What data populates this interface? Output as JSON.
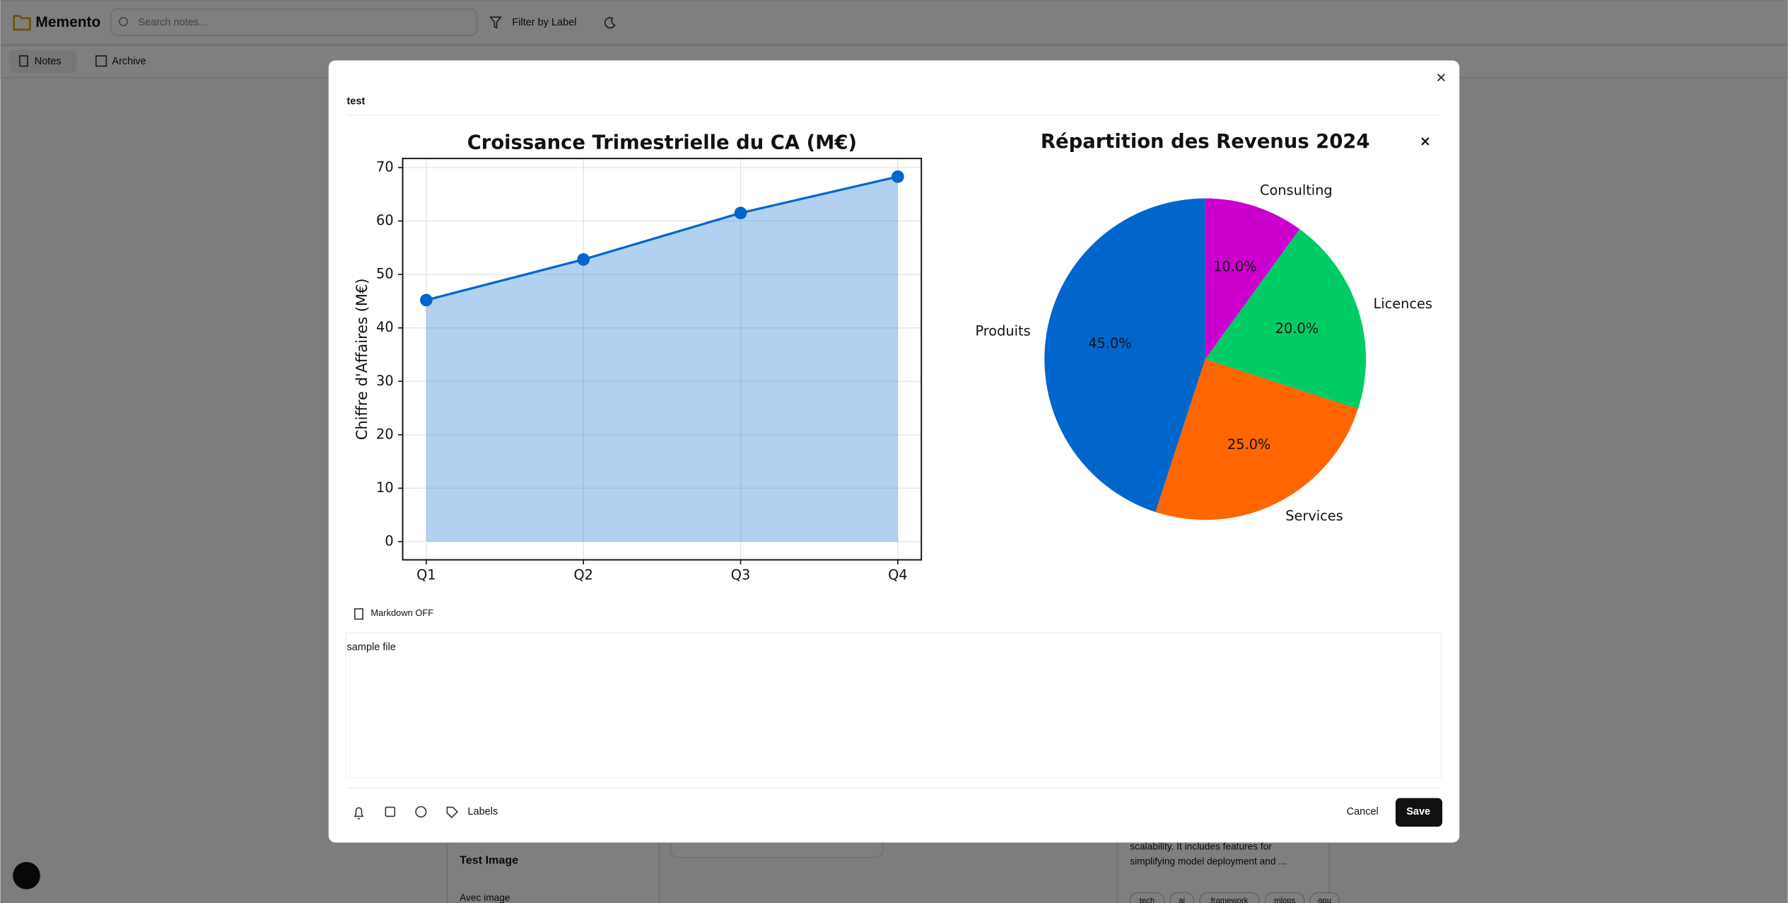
{
  "app": {
    "name": "Memento",
    "search_placeholder": "Search notes...",
    "filter": "Filter by Label",
    "nav": [
      "Notes",
      "Archive"
    ]
  },
  "background_notes": [
    {
      "title": "Test Image",
      "text": "Avec image"
    },
    {
      "lines": [
        "scalability. It includes features for",
        "simplifying model deployment and ..."
      ],
      "labels": [
        "tech",
        "ai",
        "framework",
        "mlops",
        "gpu"
      ]
    }
  ],
  "modal": {
    "title": "test",
    "markdown_toggle": "Markdown OFF",
    "content": "sample file",
    "labels_button": "Labels",
    "cancel": "Cancel",
    "save": "Save"
  },
  "chart_data": [
    {
      "type": "line",
      "title": "Croissance Trimestrielle du CA (M€)",
      "y_label": "Chiffre d'Affaires (M€)",
      "categories": [
        "Q1",
        "Q2",
        "Q3",
        "Q4"
      ],
      "values": [
        45.2,
        52.8,
        61.5,
        68.3
      ],
      "color": "#0066cc",
      "fill_opacity": 0.3,
      "ylim": [
        -3.4,
        71.7
      ],
      "yticks": [
        0,
        10,
        20,
        30,
        40,
        50,
        60,
        70
      ],
      "grid": true
    },
    {
      "type": "pie",
      "title": "Répartition des Revenus 2024",
      "categories": [
        "Produits",
        "Services",
        "Licences",
        "Consulting"
      ],
      "values": [
        45,
        25,
        20,
        10
      ],
      "value_labels": [
        "45.0%",
        "25.0%",
        "20.0%",
        "10.0%"
      ],
      "colors": [
        "#0066cc",
        "#ff6600",
        "#00cc66",
        "#cc00cc"
      ],
      "start_angle": 90
    }
  ]
}
